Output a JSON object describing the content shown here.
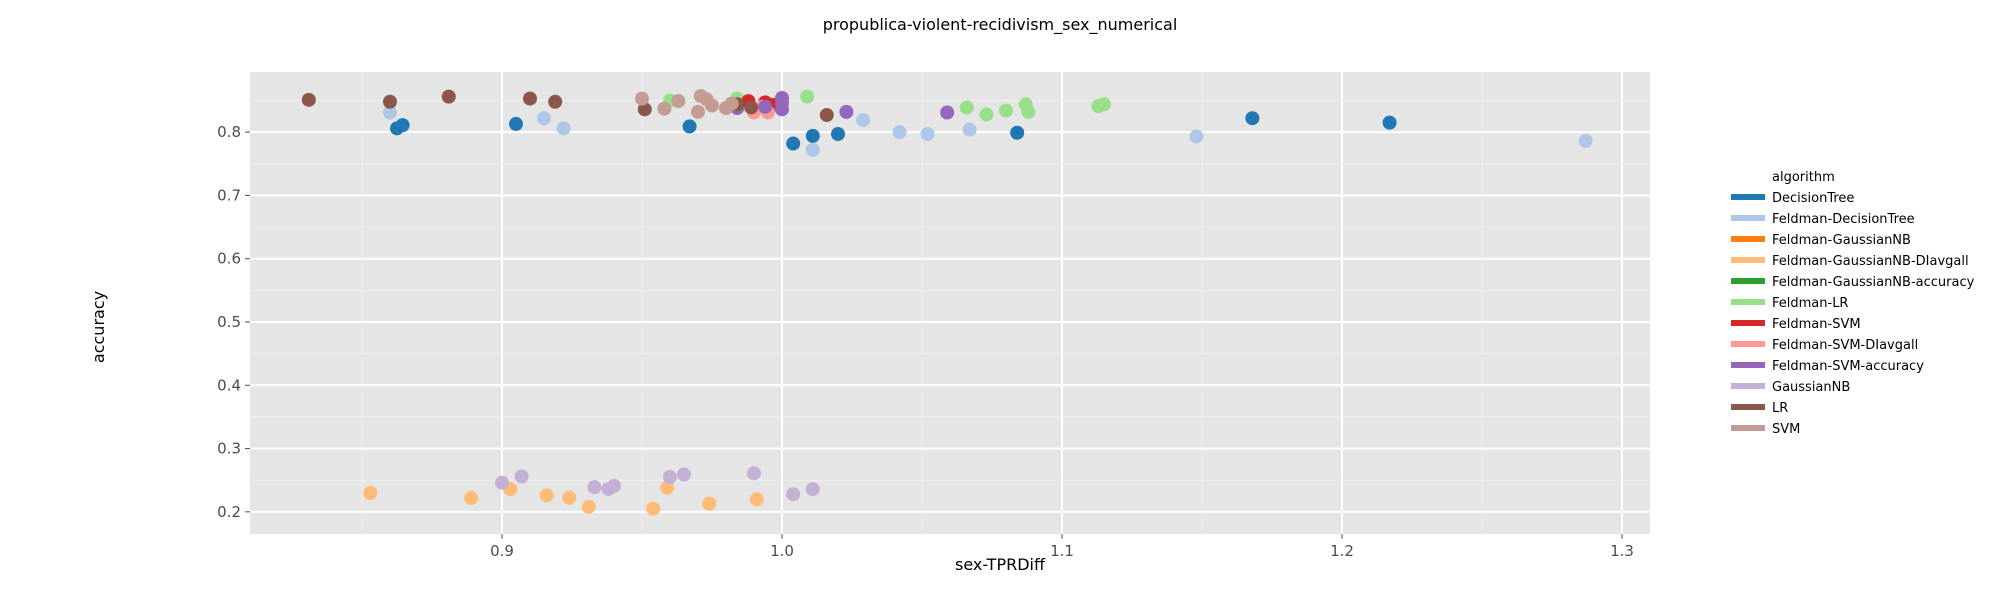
{
  "chart_data": {
    "type": "scatter",
    "title": "propublica-violent-recidivism_sex_numerical",
    "xlabel": "sex-TPRDiff",
    "ylabel": "accuracy",
    "xlim": [
      0.81,
      1.31
    ],
    "ylim": [
      0.165,
      0.895
    ],
    "x_ticks": [
      "0.9",
      "1.0",
      "1.1",
      "1.2",
      "1.3"
    ],
    "x_tick_values": [
      0.9,
      1.0,
      1.1,
      1.2,
      1.3
    ],
    "y_ticks": [
      "0.2",
      "0.3",
      "0.4",
      "0.5",
      "0.6",
      "0.7",
      "0.8"
    ],
    "y_tick_values": [
      0.2,
      0.3,
      0.4,
      0.5,
      0.6,
      0.7,
      0.8
    ],
    "background": "#e5e5e5",
    "grid": true,
    "legend": {
      "title": "algorithm",
      "position": "right"
    },
    "series": [
      {
        "name": "DecisionTree",
        "color": "#1f77b4",
        "points": [
          [
            0.8625,
            0.806
          ],
          [
            0.8645,
            0.811
          ],
          [
            0.905,
            0.813
          ],
          [
            0.967,
            0.809
          ],
          [
            1.004,
            0.782
          ],
          [
            1.011,
            0.794
          ],
          [
            1.02,
            0.797
          ],
          [
            1.084,
            0.799
          ],
          [
            1.168,
            0.822
          ],
          [
            1.217,
            0.815
          ]
        ]
      },
      {
        "name": "Feldman-DecisionTree",
        "color": "#aec7e8",
        "points": [
          [
            0.86,
            0.831
          ],
          [
            0.915,
            0.822
          ],
          [
            0.922,
            0.806
          ],
          [
            1.011,
            0.772
          ],
          [
            1.029,
            0.819
          ],
          [
            1.042,
            0.8
          ],
          [
            1.052,
            0.797
          ],
          [
            1.067,
            0.804
          ],
          [
            1.148,
            0.793
          ],
          [
            1.287,
            0.786
          ]
        ]
      },
      {
        "name": "Feldman-GaussianNB",
        "color": "#ff7f0e",
        "points": []
      },
      {
        "name": "Feldman-GaussianNB-DIavgall",
        "color": "#ffbb78",
        "points": [
          [
            0.853,
            0.23
          ],
          [
            0.889,
            0.222
          ],
          [
            0.903,
            0.236
          ],
          [
            0.916,
            0.226
          ],
          [
            0.924,
            0.222
          ],
          [
            0.931,
            0.208
          ],
          [
            0.954,
            0.205
          ],
          [
            0.959,
            0.238
          ],
          [
            0.974,
            0.213
          ],
          [
            0.991,
            0.22
          ]
        ]
      },
      {
        "name": "Feldman-GaussianNB-accuracy",
        "color": "#2ca02c",
        "points": []
      },
      {
        "name": "Feldman-LR",
        "color": "#98df8a",
        "points": [
          [
            0.96,
            0.85
          ],
          [
            0.984,
            0.853
          ],
          [
            1.009,
            0.856
          ],
          [
            1.066,
            0.839
          ],
          [
            1.073,
            0.828
          ],
          [
            1.08,
            0.834
          ],
          [
            1.087,
            0.844
          ],
          [
            1.088,
            0.832
          ],
          [
            1.113,
            0.841
          ],
          [
            1.115,
            0.844
          ]
        ]
      },
      {
        "name": "Feldman-SVM",
        "color": "#d62728",
        "points": [
          [
            0.988,
            0.849
          ],
          [
            0.994,
            0.847
          ],
          [
            0.997,
            0.843
          ]
        ]
      },
      {
        "name": "Feldman-SVM-DIavgall",
        "color": "#ff9896",
        "points": [
          [
            0.99,
            0.831
          ],
          [
            0.995,
            0.831
          ],
          [
            0.993,
            0.84
          ]
        ]
      },
      {
        "name": "Feldman-SVM-accuracy",
        "color": "#9467bd",
        "points": [
          [
            0.984,
            0.838
          ],
          [
            0.994,
            0.84
          ],
          [
            1.0,
            0.846
          ],
          [
            1.0,
            0.836
          ],
          [
            1.0,
            0.854
          ],
          [
            1.023,
            0.832
          ],
          [
            1.059,
            0.831
          ]
        ]
      },
      {
        "name": "GaussianNB",
        "color": "#c5b0d5",
        "points": [
          [
            0.9,
            0.246
          ],
          [
            0.907,
            0.256
          ],
          [
            0.933,
            0.239
          ],
          [
            0.938,
            0.236
          ],
          [
            0.94,
            0.241
          ],
          [
            0.96,
            0.255
          ],
          [
            0.965,
            0.259
          ],
          [
            0.99,
            0.261
          ],
          [
            1.004,
            0.228
          ],
          [
            1.011,
            0.236
          ]
        ]
      },
      {
        "name": "LR",
        "color": "#8c564b",
        "points": [
          [
            0.831,
            0.851
          ],
          [
            0.86,
            0.848
          ],
          [
            0.881,
            0.856
          ],
          [
            0.91,
            0.853
          ],
          [
            0.919,
            0.848
          ],
          [
            0.951,
            0.836
          ],
          [
            0.984,
            0.844
          ],
          [
            0.989,
            0.839
          ],
          [
            1.016,
            0.827
          ]
        ]
      },
      {
        "name": "SVM",
        "color": "#c49c94",
        "points": [
          [
            0.95,
            0.853
          ],
          [
            0.958,
            0.837
          ],
          [
            0.963,
            0.849
          ],
          [
            0.97,
            0.832
          ],
          [
            0.971,
            0.857
          ],
          [
            0.973,
            0.852
          ],
          [
            0.975,
            0.842
          ],
          [
            0.98,
            0.838
          ],
          [
            0.982,
            0.845
          ]
        ]
      }
    ]
  }
}
